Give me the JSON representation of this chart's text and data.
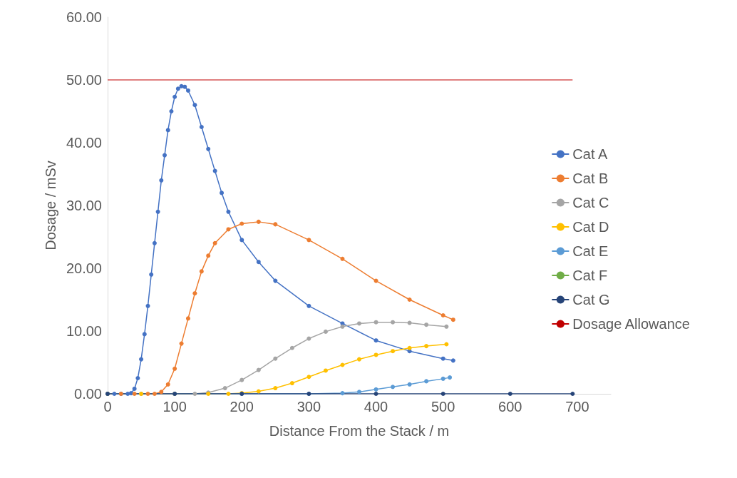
{
  "chart_data": {
    "type": "line",
    "xlabel": "Distance From the Stack / m",
    "ylabel": "Dosage / mSv",
    "xlim": [
      0,
      750
    ],
    "xticks": [
      0,
      100,
      200,
      300,
      400,
      500,
      600,
      700
    ],
    "ylim": [
      0,
      60
    ],
    "yticks": [
      {
        "value": 0,
        "label": "0.00"
      },
      {
        "value": 10,
        "label": "10.00"
      },
      {
        "value": 20,
        "label": "20.00"
      },
      {
        "value": 30,
        "label": "30.00"
      },
      {
        "value": 40,
        "label": "40.00"
      },
      {
        "value": 50,
        "label": "50.00"
      },
      {
        "value": 60,
        "label": "60.00"
      }
    ],
    "grid": false,
    "legend": "right",
    "marker": "circle",
    "series": [
      {
        "name": "Cat A",
        "color": "#4472c4",
        "x": [
          0,
          10,
          20,
          30,
          35,
          40,
          45,
          50,
          55,
          60,
          65,
          70,
          75,
          80,
          85,
          90,
          95,
          100,
          105,
          110,
          115,
          120,
          130,
          140,
          150,
          160,
          170,
          180,
          200,
          225,
          250,
          300,
          350,
          400,
          450,
          500,
          515
        ],
        "values": [
          0,
          0,
          0,
          0,
          0.1,
          0.8,
          2.5,
          5.5,
          9.5,
          14,
          19,
          24,
          29,
          34,
          38,
          42,
          45,
          47.3,
          48.6,
          49,
          48.9,
          48.3,
          46,
          42.5,
          39,
          35.5,
          32,
          29,
          24.5,
          21,
          18,
          14,
          11.2,
          8.5,
          6.8,
          5.6,
          5.3
        ]
      },
      {
        "name": "Cat B",
        "color": "#ed7d31",
        "x": [
          0,
          20,
          40,
          60,
          70,
          80,
          90,
          100,
          110,
          120,
          130,
          140,
          150,
          160,
          180,
          200,
          225,
          250,
          300,
          350,
          400,
          450,
          500,
          515
        ],
        "values": [
          0,
          0,
          0,
          0,
          0,
          0.3,
          1.5,
          4,
          8,
          12,
          16,
          19.5,
          22,
          24,
          26.2,
          27.1,
          27.4,
          27,
          24.5,
          21.5,
          18,
          15,
          12.5,
          11.8
        ]
      },
      {
        "name": "Cat C",
        "color": "#a5a5a5",
        "x": [
          0,
          50,
          100,
          130,
          150,
          175,
          200,
          225,
          250,
          275,
          300,
          325,
          350,
          375,
          400,
          425,
          450,
          475,
          505
        ],
        "values": [
          0,
          0,
          0,
          0,
          0.2,
          0.9,
          2.2,
          3.8,
          5.6,
          7.3,
          8.8,
          9.9,
          10.7,
          11.2,
          11.4,
          11.4,
          11.3,
          11,
          10.7
        ]
      },
      {
        "name": "Cat D",
        "color": "#ffc000",
        "x": [
          0,
          50,
          100,
          150,
          180,
          200,
          225,
          250,
          275,
          300,
          325,
          350,
          375,
          400,
          425,
          450,
          475,
          505
        ],
        "values": [
          0,
          0,
          0,
          0,
          0,
          0.1,
          0.4,
          0.9,
          1.7,
          2.7,
          3.7,
          4.6,
          5.5,
          6.2,
          6.8,
          7.3,
          7.6,
          7.9
        ]
      },
      {
        "name": "Cat E",
        "color": "#5b9bd5",
        "x": [
          0,
          100,
          200,
          300,
          350,
          375,
          400,
          425,
          450,
          475,
          500,
          510
        ],
        "values": [
          0,
          0,
          0,
          0,
          0.1,
          0.3,
          0.7,
          1.1,
          1.5,
          2,
          2.4,
          2.6
        ]
      },
      {
        "name": "Cat F",
        "color": "#70ad47"
      },
      {
        "name": "Cat G",
        "color": "#264478",
        "x": [
          0,
          100,
          200,
          300,
          400,
          500,
          600,
          693
        ],
        "values": [
          0,
          0,
          0,
          0,
          0,
          0,
          0,
          0
        ]
      },
      {
        "name": "Dosage Allowance",
        "color": "#c00000",
        "marker": "none",
        "x": [
          0,
          693
        ],
        "values": [
          50,
          50
        ]
      }
    ]
  }
}
